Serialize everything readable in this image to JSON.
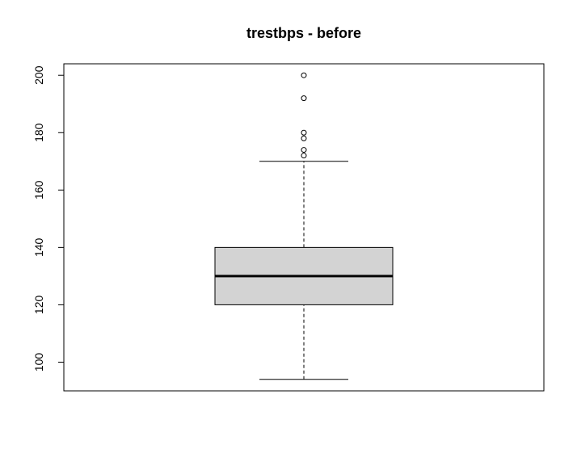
{
  "chart_data": {
    "type": "boxplot",
    "title": "trestbps - before",
    "ylim": [
      90,
      204
    ],
    "yticks": [
      100,
      120,
      140,
      160,
      180,
      200
    ],
    "box": {
      "lower_whisker": 94,
      "q1": 120,
      "median": 130,
      "q3": 140,
      "upper_whisker": 170
    },
    "outliers": [
      172,
      174,
      178,
      180,
      192,
      200
    ]
  }
}
